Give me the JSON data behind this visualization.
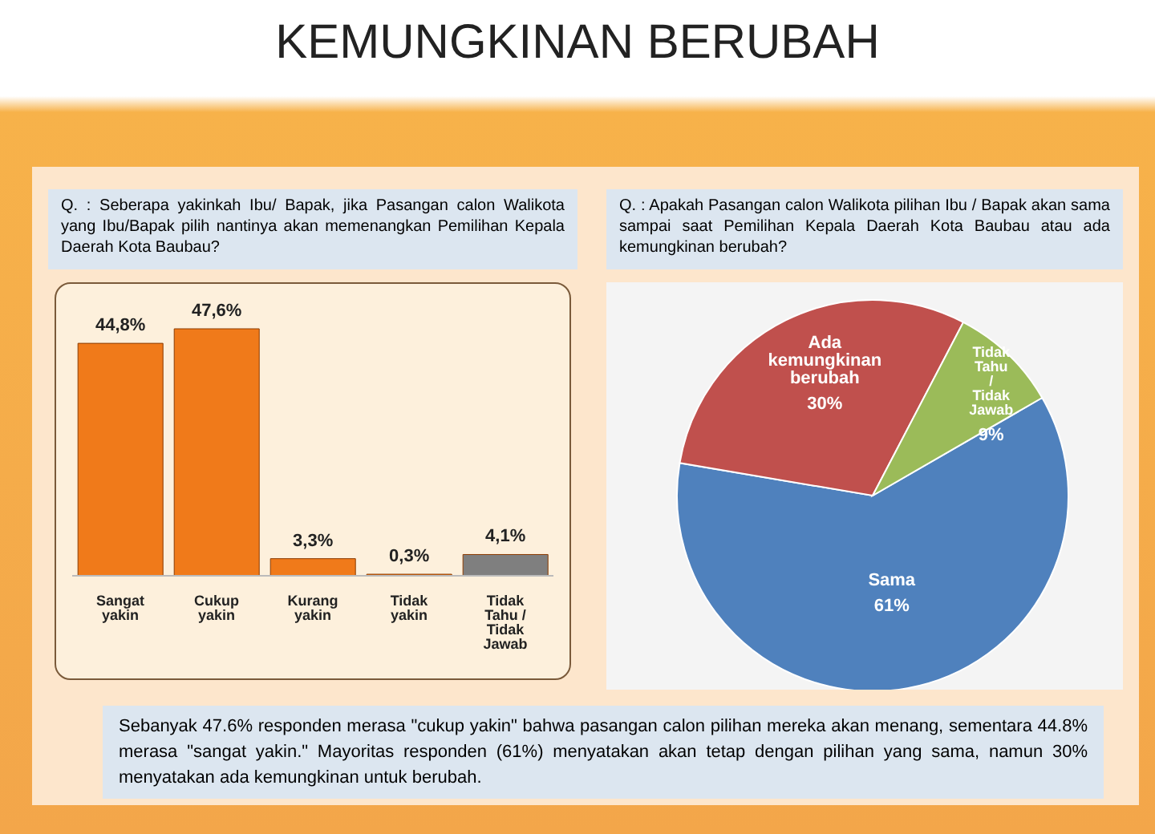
{
  "chart_data": [
    {
      "type": "bar",
      "title": "KEMUNGKINAN BERUBAH",
      "subtitle": "Q. : Seberapa yakinkah Ibu/ Bapak, jika Pasangan calon Walikota yang Ibu/Bapak pilih nantinya akan memenangkan Pemilihan Kepala Daerah Kota Baubau?",
      "categories": [
        "Sangat yakin",
        "Cukup yakin",
        "Kurang yakin",
        "Tidak yakin",
        "Tidak Tahu / Tidak Jawab"
      ],
      "values": [
        44.8,
        47.6,
        3.3,
        0.3,
        4.1
      ],
      "colors": [
        "#f07a1a",
        "#f07a1a",
        "#f07a1a",
        "#f07a1a",
        "#7f7f7f"
      ],
      "value_labels": [
        "44,8%",
        "47,6%",
        "3,3%",
        "0,3%",
        "4,1%"
      ]
    },
    {
      "type": "pie",
      "subtitle": "Q. : Apakah Pasangan calon Walikota pilihan Ibu / Bapak akan sama sampai saat Pemilihan Kepala Daerah Kota Baubau atau ada kemungkinan berubah?",
      "categories": [
        "Sama",
        "Ada kemungkinan berubah",
        "Tidak Tahu / Tidak Jawab"
      ],
      "values": [
        61,
        30,
        9
      ],
      "colors": [
        "#4f81bd",
        "#c0504d",
        "#9bbb59"
      ],
      "value_labels": [
        "61%",
        "30%",
        "9%"
      ],
      "annotations": [
        "Sebanyak 47.6% responden merasa \"cukup yakin\" bahwa pasangan calon pilihan mereka akan menang, sementara 44.8% merasa \"sangat yakin.\" Mayoritas responden (61%) menyatakan akan tetap dengan pilihan yang sama, namun 30% menyatakan ada kemungkinan untuk berubah."
      ]
    }
  ]
}
